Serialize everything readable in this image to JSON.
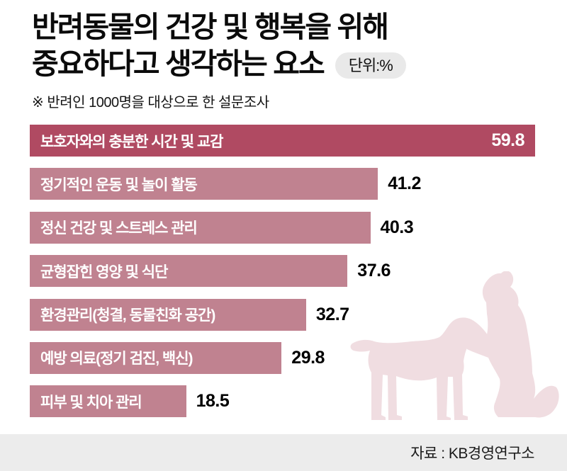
{
  "header": {
    "title_line1": "반려동물의 건강 및 행복을 위해",
    "title_line2": "중요하다고 생각하는 요소",
    "unit_badge": "단위:%",
    "subtitle": "※ 반려인 1000명을 대상으로 한 설문조사"
  },
  "chart_data": {
    "type": "bar",
    "orientation": "horizontal",
    "title": "반려동물의 건강 및 행복을 위해 중요하다고 생각하는 요소",
    "unit": "%",
    "note": "※ 반려인 1000명을 대상으로 한 설문조사",
    "categories": [
      "보호자와의 충분한 시간 및 교감",
      "정기적인 운동 및 놀이 활동",
      "정신 건강 및 스트레스 관리",
      "균형잡힌 영양 및 식단",
      "환경관리(청결, 동물친화 공간)",
      "예방 의료(정기 검진, 백신)",
      "피부 및 치아 관리"
    ],
    "values": [
      59.8,
      41.2,
      40.3,
      37.6,
      32.7,
      29.8,
      18.5
    ],
    "xlim": [
      0,
      62
    ],
    "grid": false,
    "legend": false,
    "highlight_index": 0,
    "value_label_position": "first bar: inside right (white); others: outside right (black)",
    "colors": {
      "highlight_bar": "#b04a62",
      "normal_bar": "#c08290",
      "silhouette": "#f0dde1",
      "footer_bg": "#ececec",
      "badge_bg": "#e9e9e9"
    }
  },
  "footer": {
    "source": "자료 : KB경영연구소"
  }
}
